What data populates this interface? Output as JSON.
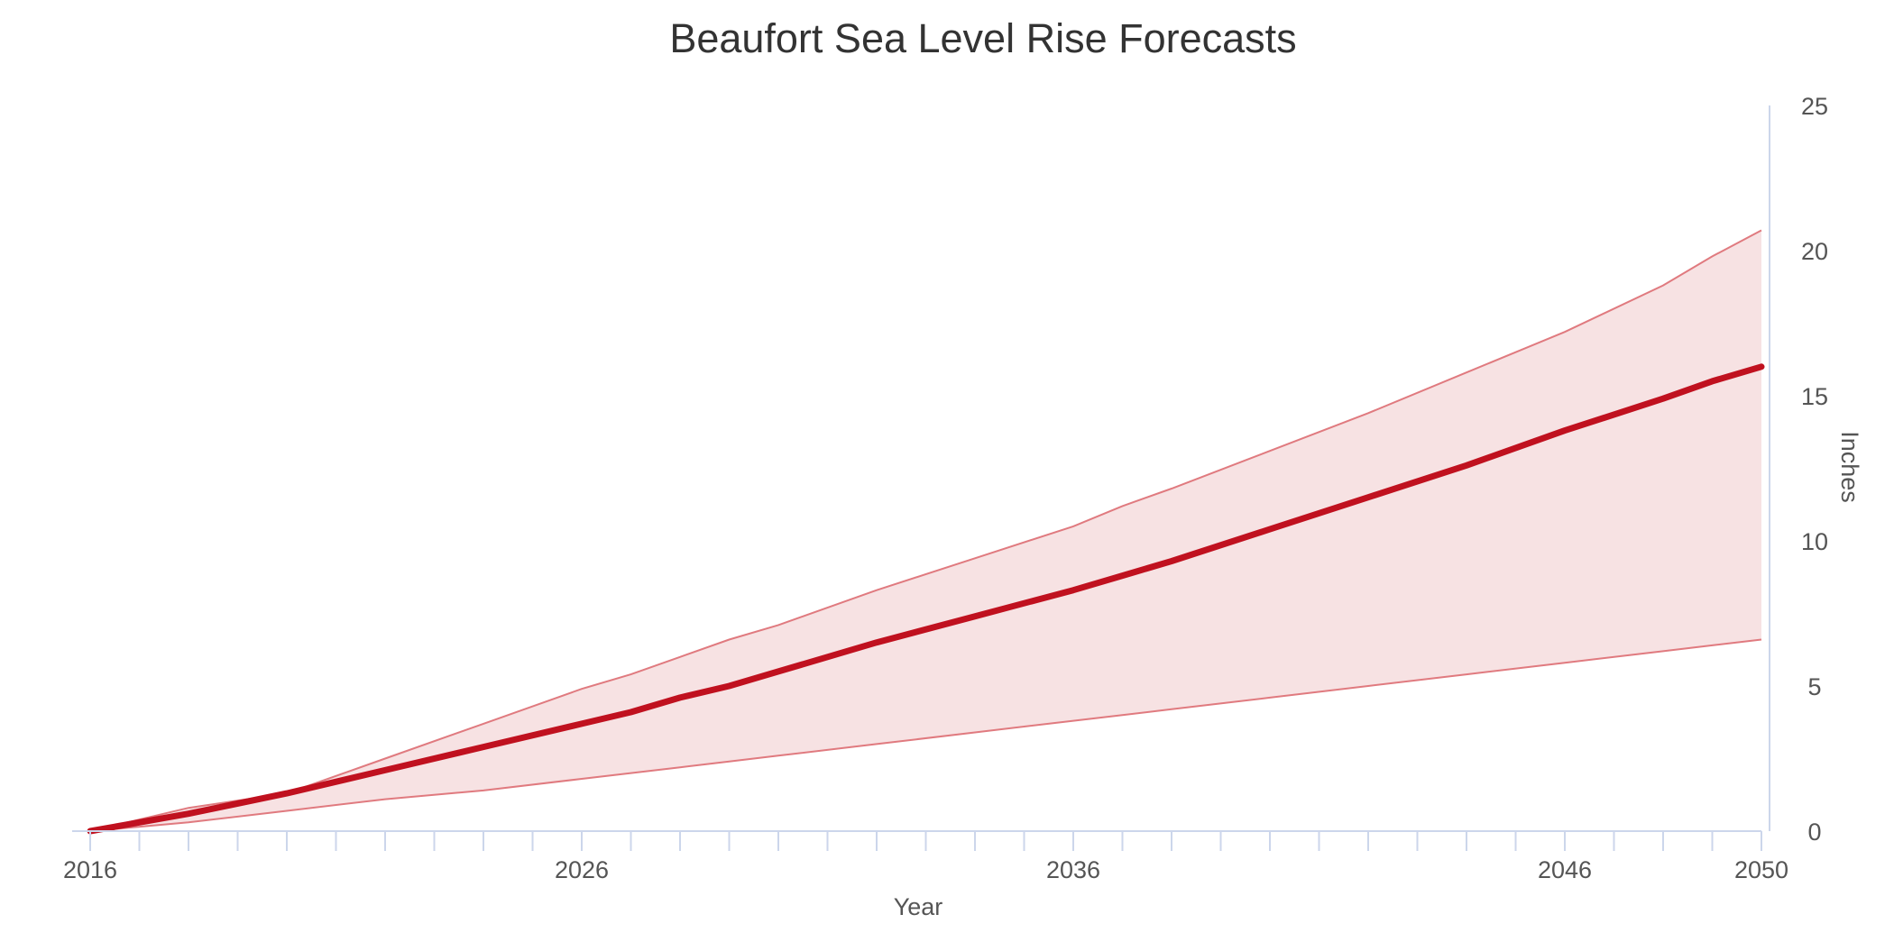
{
  "chart_data": {
    "type": "area",
    "title": "Beaufort Sea Level Rise Forecasts",
    "xlabel": "Year",
    "ylabel": "Inches",
    "xlim": [
      2016,
      2050
    ],
    "ylim": [
      0,
      25
    ],
    "x_tick_labels": [
      "2016",
      "2026",
      "2036",
      "2046",
      "2050"
    ],
    "x_tick_values": [
      2016,
      2026,
      2036,
      2046,
      2050
    ],
    "x_minor_tick_step": 1,
    "y_tick_labels": [
      "0",
      "5",
      "10",
      "15",
      "20",
      "25"
    ],
    "y_tick_values": [
      0,
      5,
      10,
      15,
      20,
      25
    ],
    "y_axis_side": "right",
    "grid": false,
    "legend": "none",
    "colors": {
      "median_line": "#c0111f",
      "range_line": "#e07a7f",
      "range_fill": "#f7e2e3",
      "axis": "#ccd6eb",
      "text": "#555555",
      "title": "#333333"
    },
    "x": [
      2016,
      2018,
      2020,
      2022,
      2024,
      2026,
      2027,
      2028,
      2029,
      2030,
      2032,
      2034,
      2036,
      2037,
      2038,
      2040,
      2042,
      2044,
      2046,
      2048,
      2049,
      2050
    ],
    "series": [
      {
        "role": "upper",
        "values": [
          0,
          0.8,
          1.3,
          2.5,
          3.7,
          4.9,
          5.4,
          6.0,
          6.6,
          7.1,
          8.3,
          9.4,
          10.5,
          11.2,
          11.8,
          13.1,
          14.4,
          15.8,
          17.2,
          18.8,
          19.8,
          20.7
        ]
      },
      {
        "role": "median",
        "values": [
          0,
          0.6,
          1.3,
          2.1,
          2.9,
          3.7,
          4.1,
          4.6,
          5.0,
          5.5,
          6.5,
          7.4,
          8.3,
          8.8,
          9.3,
          10.4,
          11.5,
          12.6,
          13.8,
          14.9,
          15.5,
          16.0
        ]
      },
      {
        "role": "lower",
        "values": [
          0,
          0.3,
          0.7,
          1.1,
          1.4,
          1.8,
          2.0,
          2.2,
          2.4,
          2.6,
          3.0,
          3.4,
          3.8,
          4.0,
          4.2,
          4.6,
          5.0,
          5.4,
          5.8,
          6.2,
          6.4,
          6.6
        ]
      }
    ]
  }
}
